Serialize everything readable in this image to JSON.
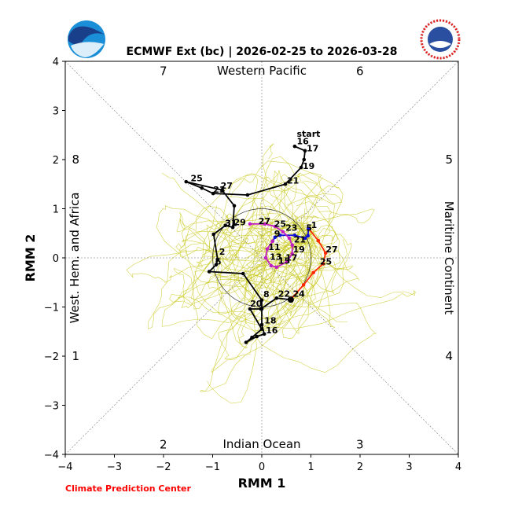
{
  "chart_data": {
    "type": "line",
    "title": "ECMWF Ext (bc) | 2026-02-25 to 2026-03-28",
    "xlabel": "RMM 1",
    "ylabel": "RMM 2",
    "xlim": [
      -4,
      4
    ],
    "ylim": [
      -4,
      4
    ],
    "xticks": [
      "−4",
      "−3",
      "−2",
      "−1",
      "0",
      "1",
      "2",
      "3",
      "4"
    ],
    "yticks": [
      "−4",
      "−3",
      "−2",
      "−1",
      "0",
      "1",
      "2",
      "3",
      "4"
    ],
    "phases": [
      {
        "label": "1",
        "x": -3.8,
        "y": -2.0
      },
      {
        "label": "2",
        "x": -2.0,
        "y": -3.8
      },
      {
        "label": "3",
        "x": 2.0,
        "y": -3.8
      },
      {
        "label": "4",
        "x": 3.8,
        "y": -2.0
      },
      {
        "label": "5",
        "x": 3.8,
        "y": 2.0
      },
      {
        "label": "6",
        "x": 2.0,
        "y": 3.8
      },
      {
        "label": "7",
        "x": -2.0,
        "y": 3.8
      },
      {
        "label": "8",
        "x": -3.8,
        "y": 2.0
      }
    ],
    "regions": {
      "top": "Western Pacific",
      "bottom": "Indian Ocean",
      "left": "West. Hem. and Africa",
      "right": "Maritime Continent"
    },
    "credit": "Climate Prediction Center",
    "ensemble_members": 50,
    "series": [
      {
        "name": "observed",
        "color": "#000000",
        "points": [
          [
            0.67,
            2.27
          ],
          [
            0.88,
            2.18
          ],
          [
            0.86,
            2.0
          ],
          [
            0.8,
            1.84
          ],
          [
            0.48,
            1.5
          ],
          [
            -0.29,
            1.28
          ],
          [
            -0.99,
            1.31
          ],
          [
            -1.22,
            1.42
          ],
          [
            -1.54,
            1.55
          ],
          [
            -0.81,
            1.38
          ],
          [
            -0.56,
            1.06
          ],
          [
            -0.59,
            0.62
          ],
          [
            -0.74,
            0.66
          ],
          [
            -0.98,
            0.48
          ],
          [
            -0.9,
            -0.03
          ],
          [
            -0.93,
            -0.14
          ],
          [
            -1.07,
            -0.28
          ],
          [
            -0.38,
            -0.32
          ],
          [
            0.0,
            -0.86
          ],
          [
            0.0,
            -1.04
          ],
          [
            0.0,
            -1.36
          ],
          [
            0.05,
            -1.55
          ],
          [
            -0.1,
            -1.6
          ],
          [
            -0.32,
            -1.72
          ],
          [
            -0.2,
            -1.62
          ],
          [
            0.0,
            -1.45
          ],
          [
            -0.24,
            -1.04
          ],
          [
            -0.02,
            -1.04
          ],
          [
            0.3,
            -0.82
          ],
          [
            0.59,
            -0.85
          ]
        ]
      },
      {
        "name": "forecast-week1",
        "color": "#ff2a00",
        "points": [
          [
            0.59,
            -0.85
          ],
          [
            0.85,
            -0.55
          ],
          [
            1.05,
            -0.3
          ],
          [
            1.25,
            -0.12
          ],
          [
            1.3,
            0.1
          ],
          [
            1.15,
            0.35
          ],
          [
            0.95,
            0.6
          ]
        ]
      },
      {
        "name": "forecast-week2",
        "color": "#1010dd",
        "points": [
          [
            0.95,
            0.6
          ],
          [
            0.94,
            0.45
          ],
          [
            0.88,
            0.4
          ],
          [
            0.67,
            0.46
          ],
          [
            0.37,
            0.46
          ],
          [
            0.27,
            0.42
          ],
          [
            0.22,
            0.34
          ]
        ]
      },
      {
        "name": "forecast-week3-4",
        "color": "#c020c0",
        "points": [
          [
            0.22,
            0.34
          ],
          [
            0.11,
            0.18
          ],
          [
            0.08,
            0.0
          ],
          [
            0.19,
            -0.16
          ],
          [
            0.3,
            -0.19
          ],
          [
            0.51,
            -0.08
          ],
          [
            0.62,
            0.08
          ],
          [
            0.62,
            0.26
          ],
          [
            0.56,
            0.4
          ],
          [
            0.43,
            0.53
          ],
          [
            0.27,
            0.64
          ],
          [
            0.06,
            0.69
          ],
          [
            -0.24,
            0.69
          ]
        ]
      }
    ],
    "annotations": [
      {
        "text": "start",
        "x": 0.68,
        "y": 2.43,
        "color": "#000000"
      },
      {
        "text": "16",
        "x": 0.68,
        "y": 2.28,
        "color": "#000000"
      },
      {
        "text": "17",
        "x": 0.88,
        "y": 2.14,
        "color": "#000000"
      },
      {
        "text": "19",
        "x": 0.8,
        "y": 1.78,
        "color": "#000000"
      },
      {
        "text": "21",
        "x": 0.48,
        "y": 1.48,
        "color": "#000000"
      },
      {
        "text": "23",
        "x": -1.02,
        "y": 1.3,
        "color": "#000000"
      },
      {
        "text": "25",
        "x": -1.48,
        "y": 1.53,
        "color": "#000000"
      },
      {
        "text": "27",
        "x": -0.87,
        "y": 1.38,
        "color": "#000000"
      },
      {
        "text": "29",
        "x": -0.6,
        "y": 0.63,
        "color": "#000000"
      },
      {
        "text": "31",
        "x": -0.78,
        "y": 0.62,
        "color": "#000000"
      },
      {
        "text": "2",
        "x": -0.9,
        "y": 0.03,
        "color": "#000000"
      },
      {
        "text": "6",
        "x": -0.98,
        "y": -0.17,
        "color": "#000000"
      },
      {
        "text": "8",
        "x": 0.0,
        "y": -0.83,
        "color": "#000000"
      },
      {
        "text": "20",
        "x": -0.27,
        "y": -1.02,
        "color": "#000000"
      },
      {
        "text": "18",
        "x": 0.02,
        "y": -1.37,
        "color": "#000000"
      },
      {
        "text": "16",
        "x": 0.05,
        "y": -1.57,
        "color": "#000000"
      },
      {
        "text": "22",
        "x": 0.3,
        "y": -0.82,
        "color": "#000000"
      },
      {
        "text": "24",
        "x": 0.6,
        "y": -0.82,
        "color": "#000000"
      },
      {
        "text": "25",
        "x": 1.15,
        "y": -0.17,
        "color": "#000000"
      },
      {
        "text": "27",
        "x": 1.27,
        "y": 0.08,
        "color": "#000000"
      },
      {
        "text": "1",
        "x": 0.97,
        "y": 0.58,
        "color": "#000000"
      },
      {
        "text": "5",
        "x": 0.87,
        "y": 0.52,
        "color": "#000000"
      },
      {
        "text": "9",
        "x": 0.22,
        "y": 0.4,
        "color": "#000000"
      },
      {
        "text": "11",
        "x": 0.1,
        "y": 0.13,
        "color": "#000000"
      },
      {
        "text": "13",
        "x": 0.13,
        "y": -0.07,
        "color": "#000000"
      },
      {
        "text": "15",
        "x": 0.3,
        "y": -0.15,
        "color": "#000000"
      },
      {
        "text": "17",
        "x": 0.45,
        "y": -0.09,
        "color": "#000000"
      },
      {
        "text": "19",
        "x": 0.6,
        "y": 0.08,
        "color": "#000000"
      },
      {
        "text": "21",
        "x": 0.62,
        "y": 0.28,
        "color": "#000000"
      },
      {
        "text": "23",
        "x": 0.45,
        "y": 0.52,
        "color": "#000000"
      },
      {
        "text": "25",
        "x": 0.22,
        "y": 0.6,
        "color": "#000000"
      },
      {
        "text": "27",
        "x": -0.1,
        "y": 0.66,
        "color": "#000000"
      }
    ],
    "colors": {
      "ensemble": "#c8c81e",
      "credit": "#ff0000",
      "noaa": "#1a8fd8",
      "nws": "#2a4ea0"
    }
  }
}
